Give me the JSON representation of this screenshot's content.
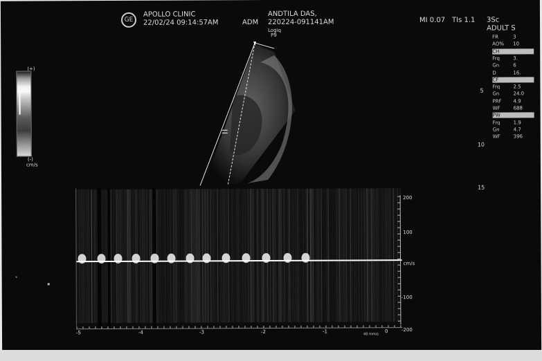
{
  "header": {
    "clinic": "APOLLO CLINIC",
    "clinic_datetime": "22/02/24 09:14:57AM",
    "adm_label": "ADM",
    "patient_name": "ANDTILA DAS,",
    "patient_id": "220224-091141AM",
    "logo_text": "GE",
    "probe_brand": "Logiq",
    "probe_model": "P9",
    "mi": "MI 0.07",
    "tis": "TIs 1.1",
    "probe": "3Sc",
    "preset": "ADULT S"
  },
  "colorbar": {
    "top_label": "(+)",
    "bottom_label": "(-)",
    "unit": "cm/s"
  },
  "depth_scale": [
    "5",
    "10",
    "15"
  ],
  "right_params": {
    "rows": [
      {
        "label": "FR",
        "value": "3"
      },
      {
        "label": "AO%",
        "value": "10"
      },
      {
        "label": "CH",
        "value": "",
        "highlight": true
      },
      {
        "label": "Frq",
        "value": "3."
      },
      {
        "label": "Gn",
        "value": "6"
      },
      {
        "label": "D",
        "value": "16."
      },
      {
        "label": "CF",
        "value": "",
        "highlight": true
      },
      {
        "label": "Frq",
        "value": "2.5"
      },
      {
        "label": "Gn",
        "value": "24.0"
      },
      {
        "label": "PRF",
        "value": "4.9"
      },
      {
        "label": "WF",
        "value": "688"
      },
      {
        "label": "PW",
        "value": "",
        "highlight": true
      },
      {
        "label": "Frq",
        "value": "1.9"
      },
      {
        "label": "Gn",
        "value": "4.7"
      },
      {
        "label": "WF",
        "value": "396"
      }
    ]
  },
  "doppler": {
    "velocity_scale": [
      "200",
      "100",
      "cm/s",
      "-100",
      "-200"
    ],
    "time_scale": [
      "-5",
      "-4",
      "-3",
      "-2",
      "-1",
      "0"
    ],
    "time_unit": "40 mm/s",
    "colors": {
      "baseline": "#ffffff",
      "spectrum": "#bfbfbf"
    }
  }
}
